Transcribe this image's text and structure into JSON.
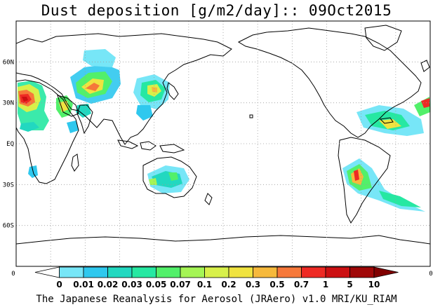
{
  "title": "Dust deposition [g/m2/day]:: 09Oct2015",
  "footer": "The Japanese Reanalysis for Aerosol (JRAero) v1.0 MRI/KU_RIAM",
  "y_axis": {
    "labels": [
      "60N",
      "30N",
      "EQ",
      "30S",
      "60S"
    ],
    "lat_values": [
      60,
      30,
      0,
      -30,
      -60
    ]
  },
  "edge_labels": {
    "left": "0",
    "right": "0"
  },
  "colorbar": {
    "labels": [
      "0",
      "0.01",
      "0.02",
      "0.03",
      "0.05",
      "0.07",
      "0.1",
      "0.2",
      "0.3",
      "0.5",
      "0.7",
      "1",
      "5",
      "10"
    ],
    "colors": [
      "#ffffff",
      "#77e6f7",
      "#2fc8ee",
      "#22d8c0",
      "#26e8a2",
      "#52f06a",
      "#a5f555",
      "#d8f04a",
      "#f0e340",
      "#f6b93c",
      "#f6783a",
      "#ee2a24",
      "#cc1012",
      "#a00808",
      "#800000"
    ]
  },
  "map": {
    "lat_range": [
      90,
      -90
    ],
    "lon_range": [
      0,
      360
    ],
    "grid": "dotted every 30 degrees"
  },
  "dust_colors": {
    "c1": "#77e6f7",
    "c2": "#2fc8ee",
    "c3": "#22d8c0",
    "c4": "#26e8a2",
    "c5": "#52f06a",
    "c6": "#a5f555",
    "c7": "#d8f04a",
    "c8": "#f0e340",
    "c9": "#f6b93c",
    "c10": "#f6783a",
    "c11": "#ee2a24",
    "c12": "#cc1012",
    "c13": "#a00808"
  }
}
